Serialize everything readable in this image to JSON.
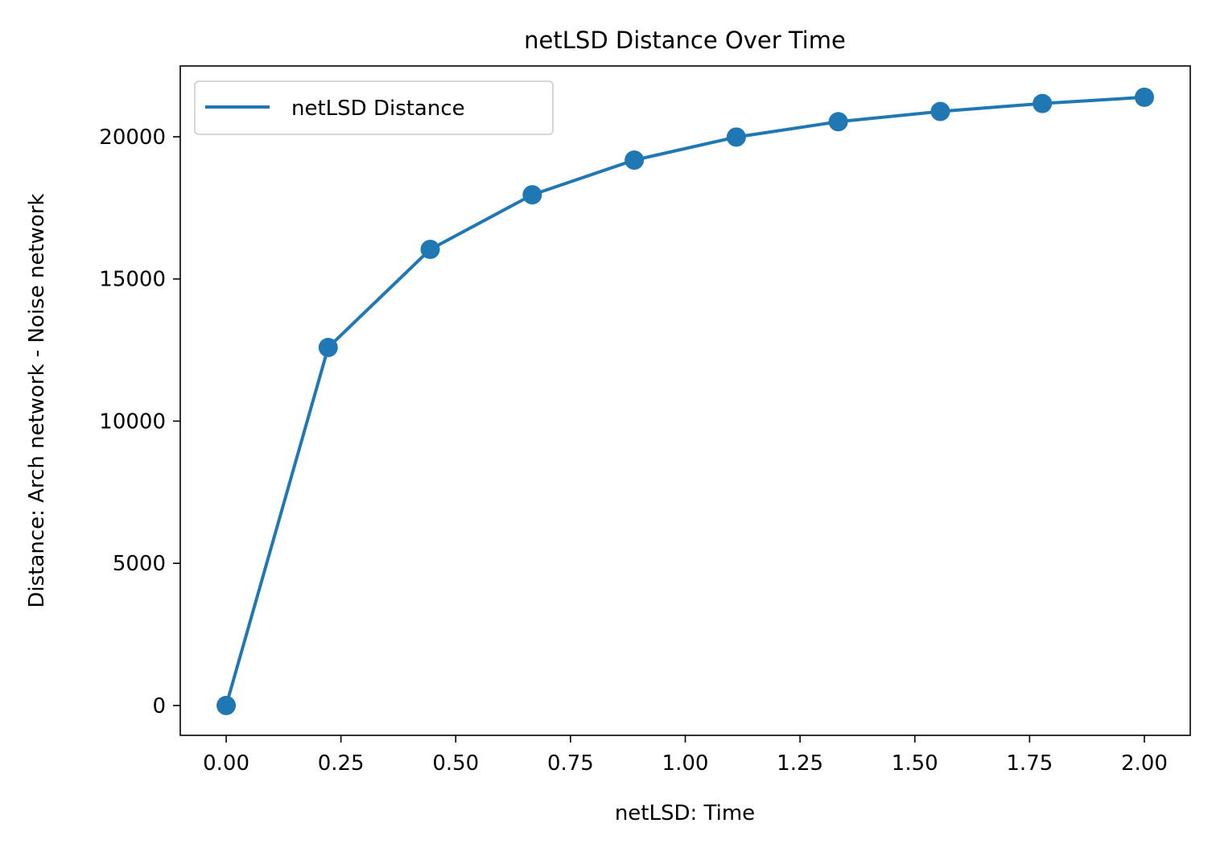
{
  "chart_data": {
    "type": "line",
    "title": "netLSD Distance Over Time",
    "xlabel": "netLSD: Time",
    "ylabel": "Distance: Arch network - Noise network",
    "xlim": [
      -0.1,
      2.1
    ],
    "ylim": [
      -1050,
      22490
    ],
    "xticks": [
      0,
      0.25,
      0.5,
      0.75,
      1.0,
      1.25,
      1.5,
      1.75,
      2.0
    ],
    "xtick_labels": [
      "0.00",
      "0.25",
      "0.50",
      "0.75",
      "1.00",
      "1.25",
      "1.50",
      "1.75",
      "2.00"
    ],
    "yticks": [
      0,
      5000,
      10000,
      15000,
      20000
    ],
    "ytick_labels": [
      "0",
      "5000",
      "10000",
      "15000",
      "20000"
    ],
    "grid": false,
    "legend_position": "upper-left",
    "series": [
      {
        "name": "netLSD Distance",
        "color": "#1f77b4",
        "marker": "circle",
        "x": [
          0.0,
          0.2222,
          0.4444,
          0.6667,
          0.8889,
          1.1111,
          1.3333,
          1.5556,
          1.7778,
          2.0
        ],
        "y": [
          0,
          12590,
          16040,
          17960,
          19180,
          19990,
          20530,
          20890,
          21170,
          21390
        ]
      }
    ]
  }
}
